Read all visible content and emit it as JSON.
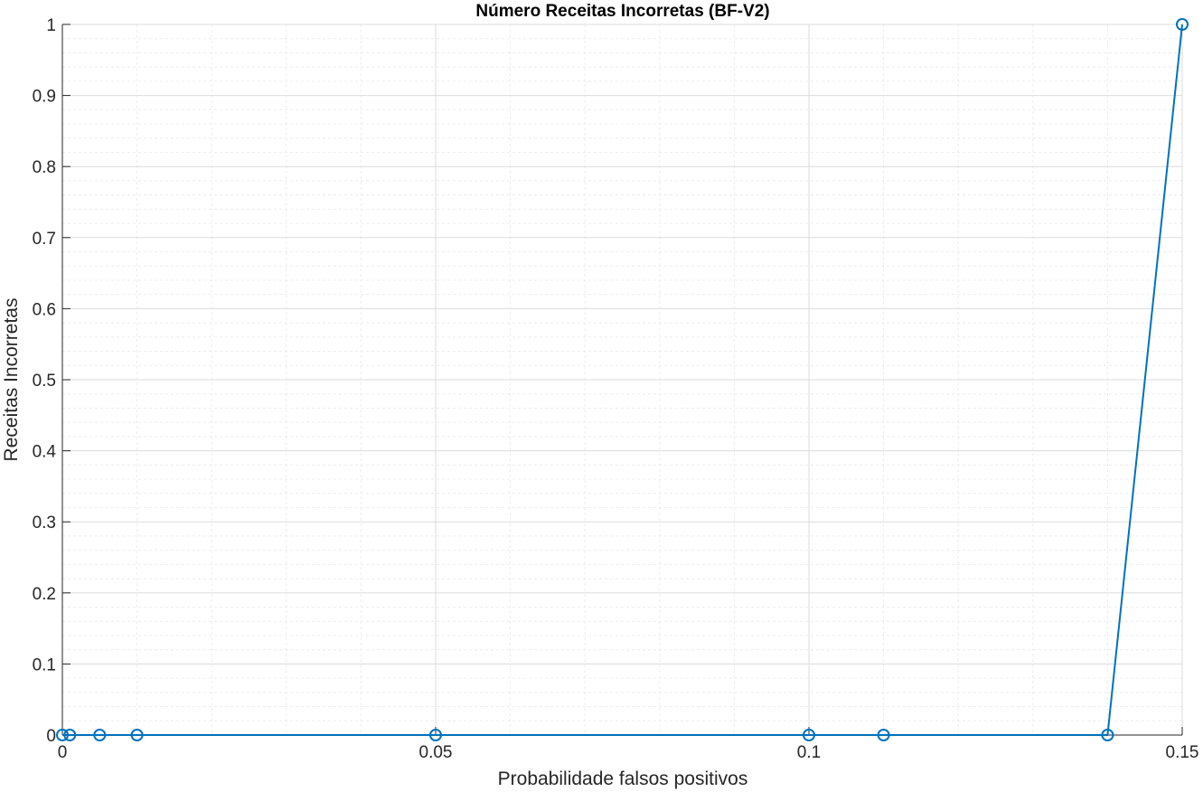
{
  "chart_data": {
    "type": "line",
    "title": "Número Receitas Incorretas (BF-V2)",
    "xlabel": "Probabilidade falsos positivos",
    "ylabel": "Receitas Incorretas",
    "xlim": [
      0,
      0.15
    ],
    "ylim": [
      0,
      1
    ],
    "xticks": [
      "0",
      "0.05",
      "0.1",
      "0.15"
    ],
    "yticks": [
      "0",
      "0.1",
      "0.2",
      "0.3",
      "0.4",
      "0.5",
      "0.6",
      "0.7",
      "0.8",
      "0.9",
      "1"
    ],
    "grid": true,
    "minor_grid": true,
    "marker": "circle",
    "colors": {
      "series": "#0072BD",
      "major_grid": "#dcdcdc",
      "minor_grid": "#ececec",
      "axis": "#262626"
    },
    "series": [
      {
        "x": [
          0,
          0.001,
          0.005,
          0.01,
          0.05,
          0.1,
          0.11,
          0.14,
          0.15
        ],
        "y": [
          0,
          0,
          0,
          0,
          0,
          0,
          0,
          0,
          1
        ]
      }
    ]
  }
}
